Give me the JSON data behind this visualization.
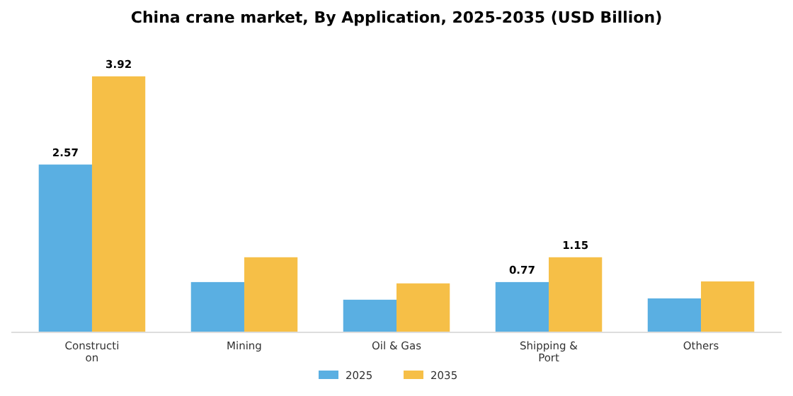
{
  "chart_data": {
    "type": "bar",
    "title": "China crane market, By Application, 2025-2035 (USD Billion)",
    "categories": [
      "Construction",
      "Mining",
      "Oil & Gas",
      "Shipping & Port",
      "Others"
    ],
    "series": [
      {
        "name": "2025",
        "color": "#5aafe2",
        "values": [
          2.57,
          0.77,
          0.5,
          0.77,
          0.52
        ],
        "value_labels": [
          "2.57",
          null,
          null,
          "0.77",
          null
        ]
      },
      {
        "name": "2035",
        "color": "#f6bf47",
        "values": [
          3.92,
          1.15,
          0.75,
          1.15,
          0.78
        ],
        "value_labels": [
          "3.92",
          null,
          null,
          "1.15",
          null
        ]
      }
    ],
    "legend": "bottom"
  }
}
